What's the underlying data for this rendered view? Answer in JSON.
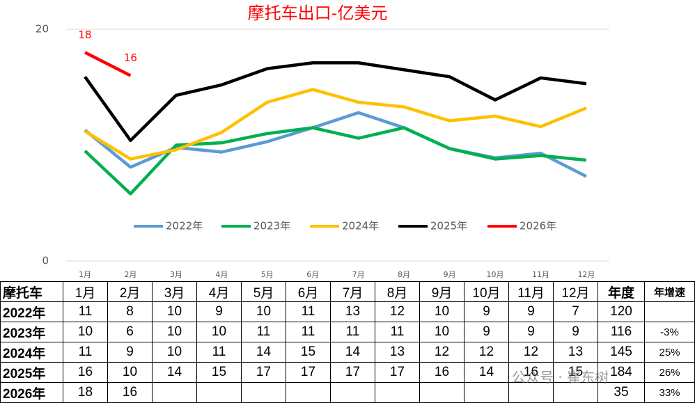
{
  "chart_data": {
    "type": "line",
    "title": "摩托车出口-亿美元",
    "categories": [
      "1月",
      "2月",
      "3月",
      "4月",
      "5月",
      "6月",
      "7月",
      "8月",
      "9月",
      "10月",
      "11月",
      "12月"
    ],
    "ylim": [
      0,
      20
    ],
    "yticks": [
      0,
      20
    ],
    "grid": true,
    "legend": "bottom",
    "series": [
      {
        "name": "2022年",
        "color": "#5b9bd5",
        "values": [
          11.3,
          8.1,
          9.8,
          9.4,
          10.3,
          11.5,
          12.8,
          11.5,
          9.7,
          8.9,
          9.3,
          7.3
        ]
      },
      {
        "name": "2023年",
        "color": "#00b050",
        "values": [
          9.5,
          5.8,
          10.0,
          10.2,
          11.0,
          11.5,
          10.6,
          11.5,
          9.7,
          8.8,
          9.1,
          8.7
        ]
      },
      {
        "name": "2024年",
        "color": "#ffc000",
        "values": [
          11.2,
          8.8,
          9.6,
          11.1,
          13.7,
          14.8,
          13.7,
          13.3,
          12.1,
          12.5,
          11.6,
          13.2
        ]
      },
      {
        "name": "2025年",
        "color": "#000000",
        "values": [
          15.9,
          10.4,
          14.3,
          15.2,
          16.6,
          17.1,
          17.1,
          16.5,
          15.9,
          13.9,
          15.8,
          15.3
        ]
      },
      {
        "name": "2026年",
        "color": "#ff0000",
        "show_labels": true,
        "values": [
          18,
          16,
          null,
          null,
          null,
          null,
          null,
          null,
          null,
          null,
          null,
          null
        ]
      }
    ]
  },
  "table": {
    "header": [
      "摩托车",
      "1月",
      "2月",
      "3月",
      "4月",
      "5月",
      "6月",
      "7月",
      "8月",
      "9月",
      "10月",
      "11月",
      "12月",
      "年度",
      "年增速"
    ],
    "rows": [
      [
        "2022年",
        11,
        8,
        10,
        9,
        10,
        11,
        13,
        12,
        10,
        9,
        9,
        7,
        120,
        null
      ],
      [
        "2023年",
        10,
        6,
        10,
        10,
        11,
        11,
        11,
        11,
        10,
        9,
        9,
        9,
        116,
        "-3%"
      ],
      [
        "2024年",
        11,
        9,
        10,
        11,
        14,
        15,
        14,
        13,
        12,
        12,
        12,
        13,
        145,
        "25%"
      ],
      [
        "2025年",
        16,
        10,
        14,
        15,
        17,
        17,
        17,
        17,
        16,
        14,
        16,
        15,
        184,
        "26%"
      ],
      [
        "2026年",
        18,
        16,
        null,
        null,
        null,
        null,
        null,
        null,
        null,
        null,
        null,
        null,
        35,
        "33%"
      ]
    ]
  },
  "watermark": "公众号 · 崔东树"
}
